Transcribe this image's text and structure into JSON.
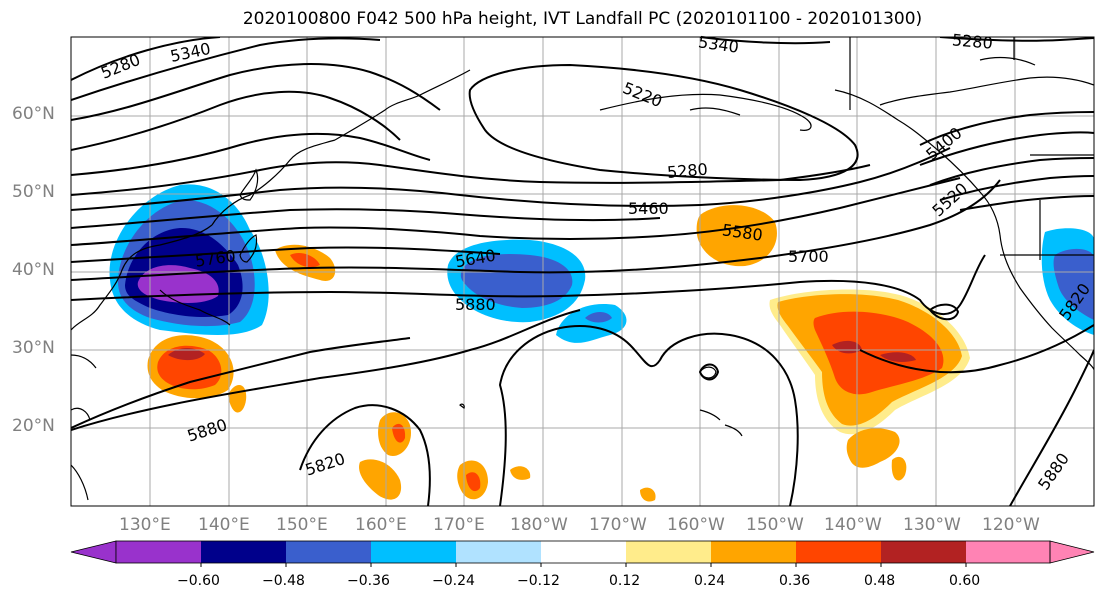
{
  "title": "2020100800 F042 500 hPa height, IVT Landfall PC (2020101100 - 2020101300)",
  "lat_labels": [
    "60°N",
    "50°N",
    "40°N",
    "30°N",
    "20°N"
  ],
  "lon_labels": [
    "130°E",
    "140°E",
    "150°E",
    "160°E",
    "170°E",
    "180°W",
    "170°W",
    "160°W",
    "150°W",
    "140°W",
    "130°W",
    "120°W"
  ],
  "contour_labels": [
    "5280",
    "5340",
    "5340",
    "5280",
    "5220",
    "5280",
    "5400",
    "5460",
    "5520",
    "5580",
    "5640",
    "5700",
    "5760",
    "5820",
    "5880",
    "5880",
    "5820",
    "5880"
  ],
  "colorbar": {
    "ticks": [
      "−0.60",
      "−0.48",
      "−0.36",
      "−0.24",
      "−0.12",
      "0.12",
      "0.24",
      "0.36",
      "0.48",
      "0.60"
    ],
    "colors": [
      "#9932cc",
      "#00008b",
      "#3a5fcd",
      "#00bfff",
      "#b0e2ff",
      "#ffffff",
      "#ffec8b",
      "#ffa500",
      "#ff4500",
      "#b22222",
      "#ff83b4"
    ]
  }
}
